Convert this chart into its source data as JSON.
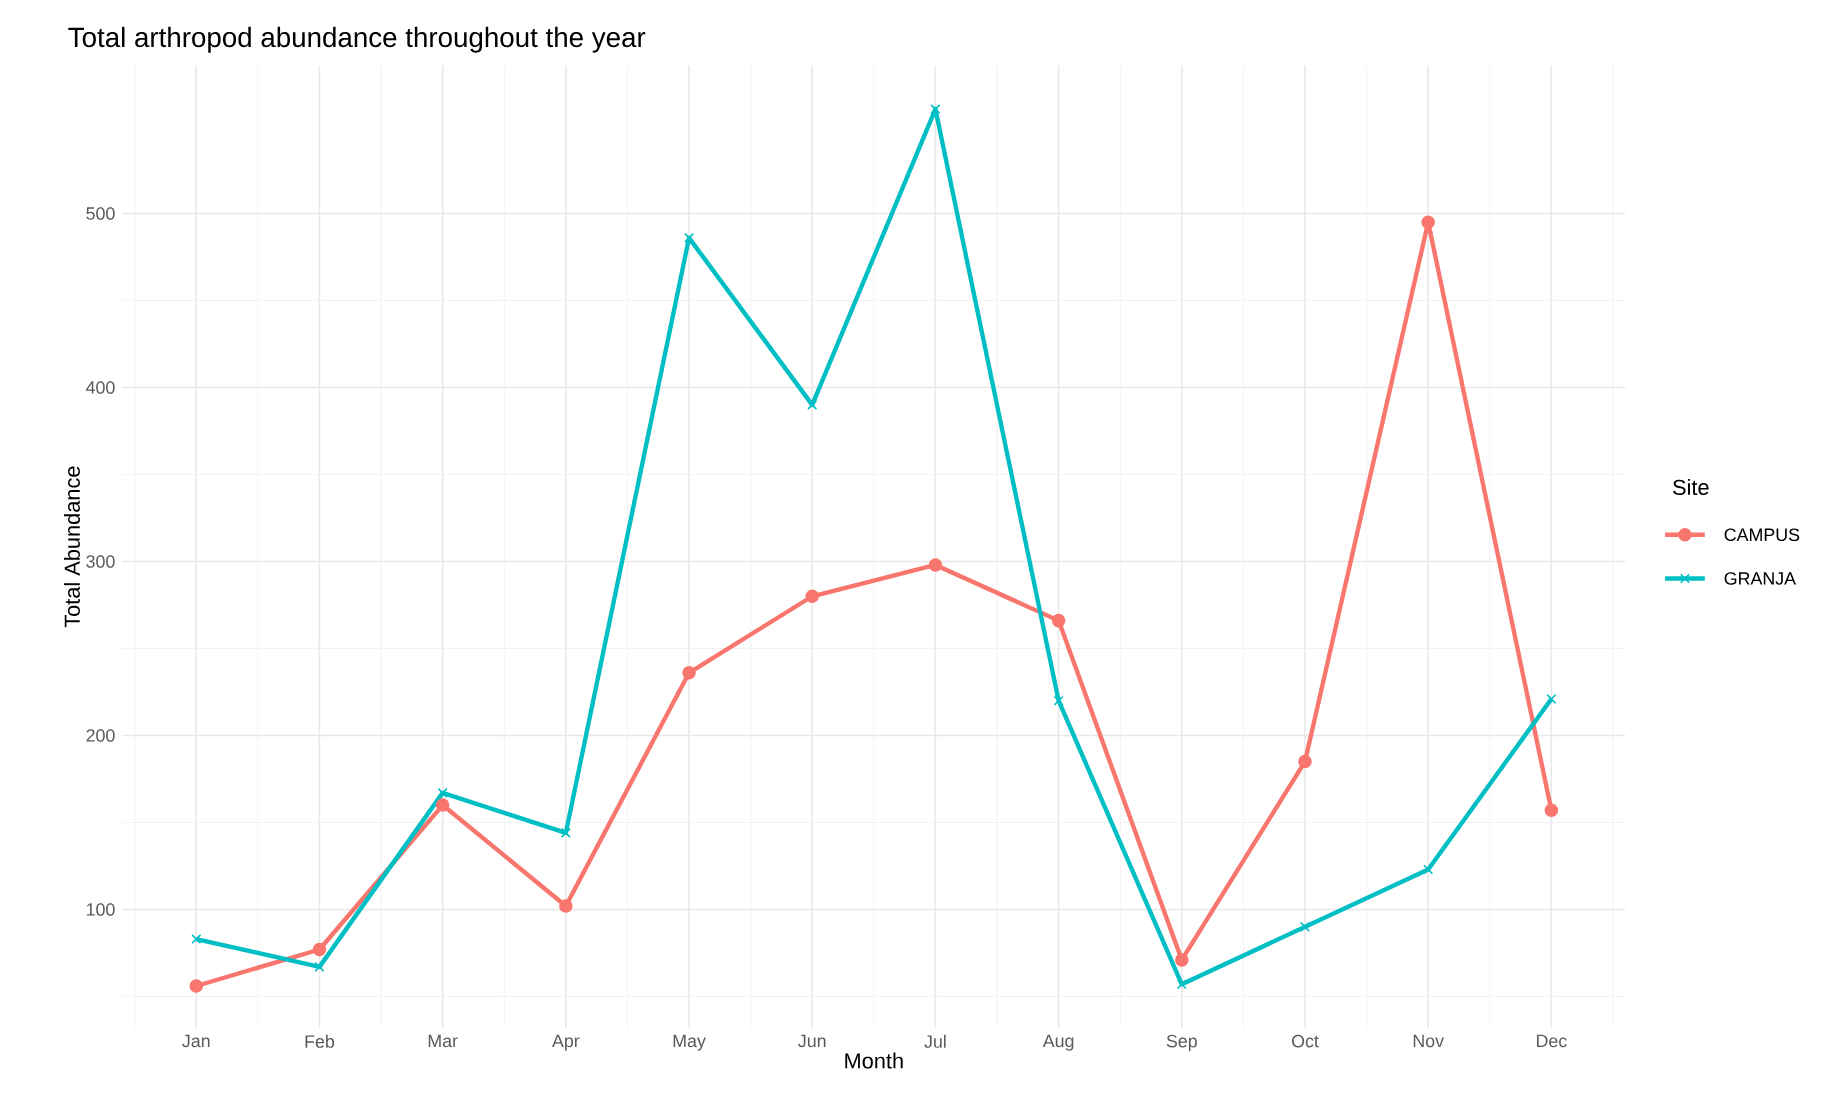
{
  "chart_data": {
    "type": "line",
    "title": "Total arthropod abundance throughout the year",
    "xlabel": "Month",
    "ylabel": "Total Abundance",
    "legend_title": "Site",
    "categories": [
      "Jan",
      "Feb",
      "Mar",
      "Apr",
      "May",
      "Jun",
      "Jul",
      "Aug",
      "Sep",
      "Oct",
      "Nov",
      "Dec"
    ],
    "series": [
      {
        "name": "CAMPUS",
        "color": "#f8766d",
        "marker": "circle",
        "values": [
          56,
          77,
          160,
          102,
          236,
          280,
          298,
          266,
          71,
          185,
          495,
          157
        ]
      },
      {
        "name": "GRANJA",
        "color": "#00bfc4",
        "marker": "cross",
        "values": [
          83,
          67,
          167,
          144,
          486,
          390,
          560,
          220,
          57,
          90,
          123,
          221
        ]
      }
    ],
    "ylim": [
      32,
      585
    ],
    "yticks": [
      100,
      200,
      300,
      400,
      500
    ],
    "grid": true,
    "legend": "right"
  }
}
